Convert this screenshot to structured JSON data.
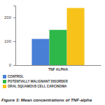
{
  "chart_data": {
    "type": "bar",
    "title": "Figure 3: Mean concentrations of TNF-alpha",
    "categories": [
      "TNF ALPHA"
    ],
    "series": [
      {
        "name": "CONTROL",
        "color": "#4a7fd6",
        "values": [
          110
        ]
      },
      {
        "name": "POTENTIALLY MALIGNANT DISORDER",
        "color": "#2fb84a",
        "values": [
          148
        ]
      },
      {
        "name": "ORAL SQUAMOUS CELL CARCINOMA",
        "color": "#f7c31a",
        "values": [
          240
        ]
      }
    ],
    "ylim": [
      0,
      250
    ],
    "yticks": [
      0,
      100,
      200
    ],
    "grid": false,
    "legend": "bottom"
  }
}
